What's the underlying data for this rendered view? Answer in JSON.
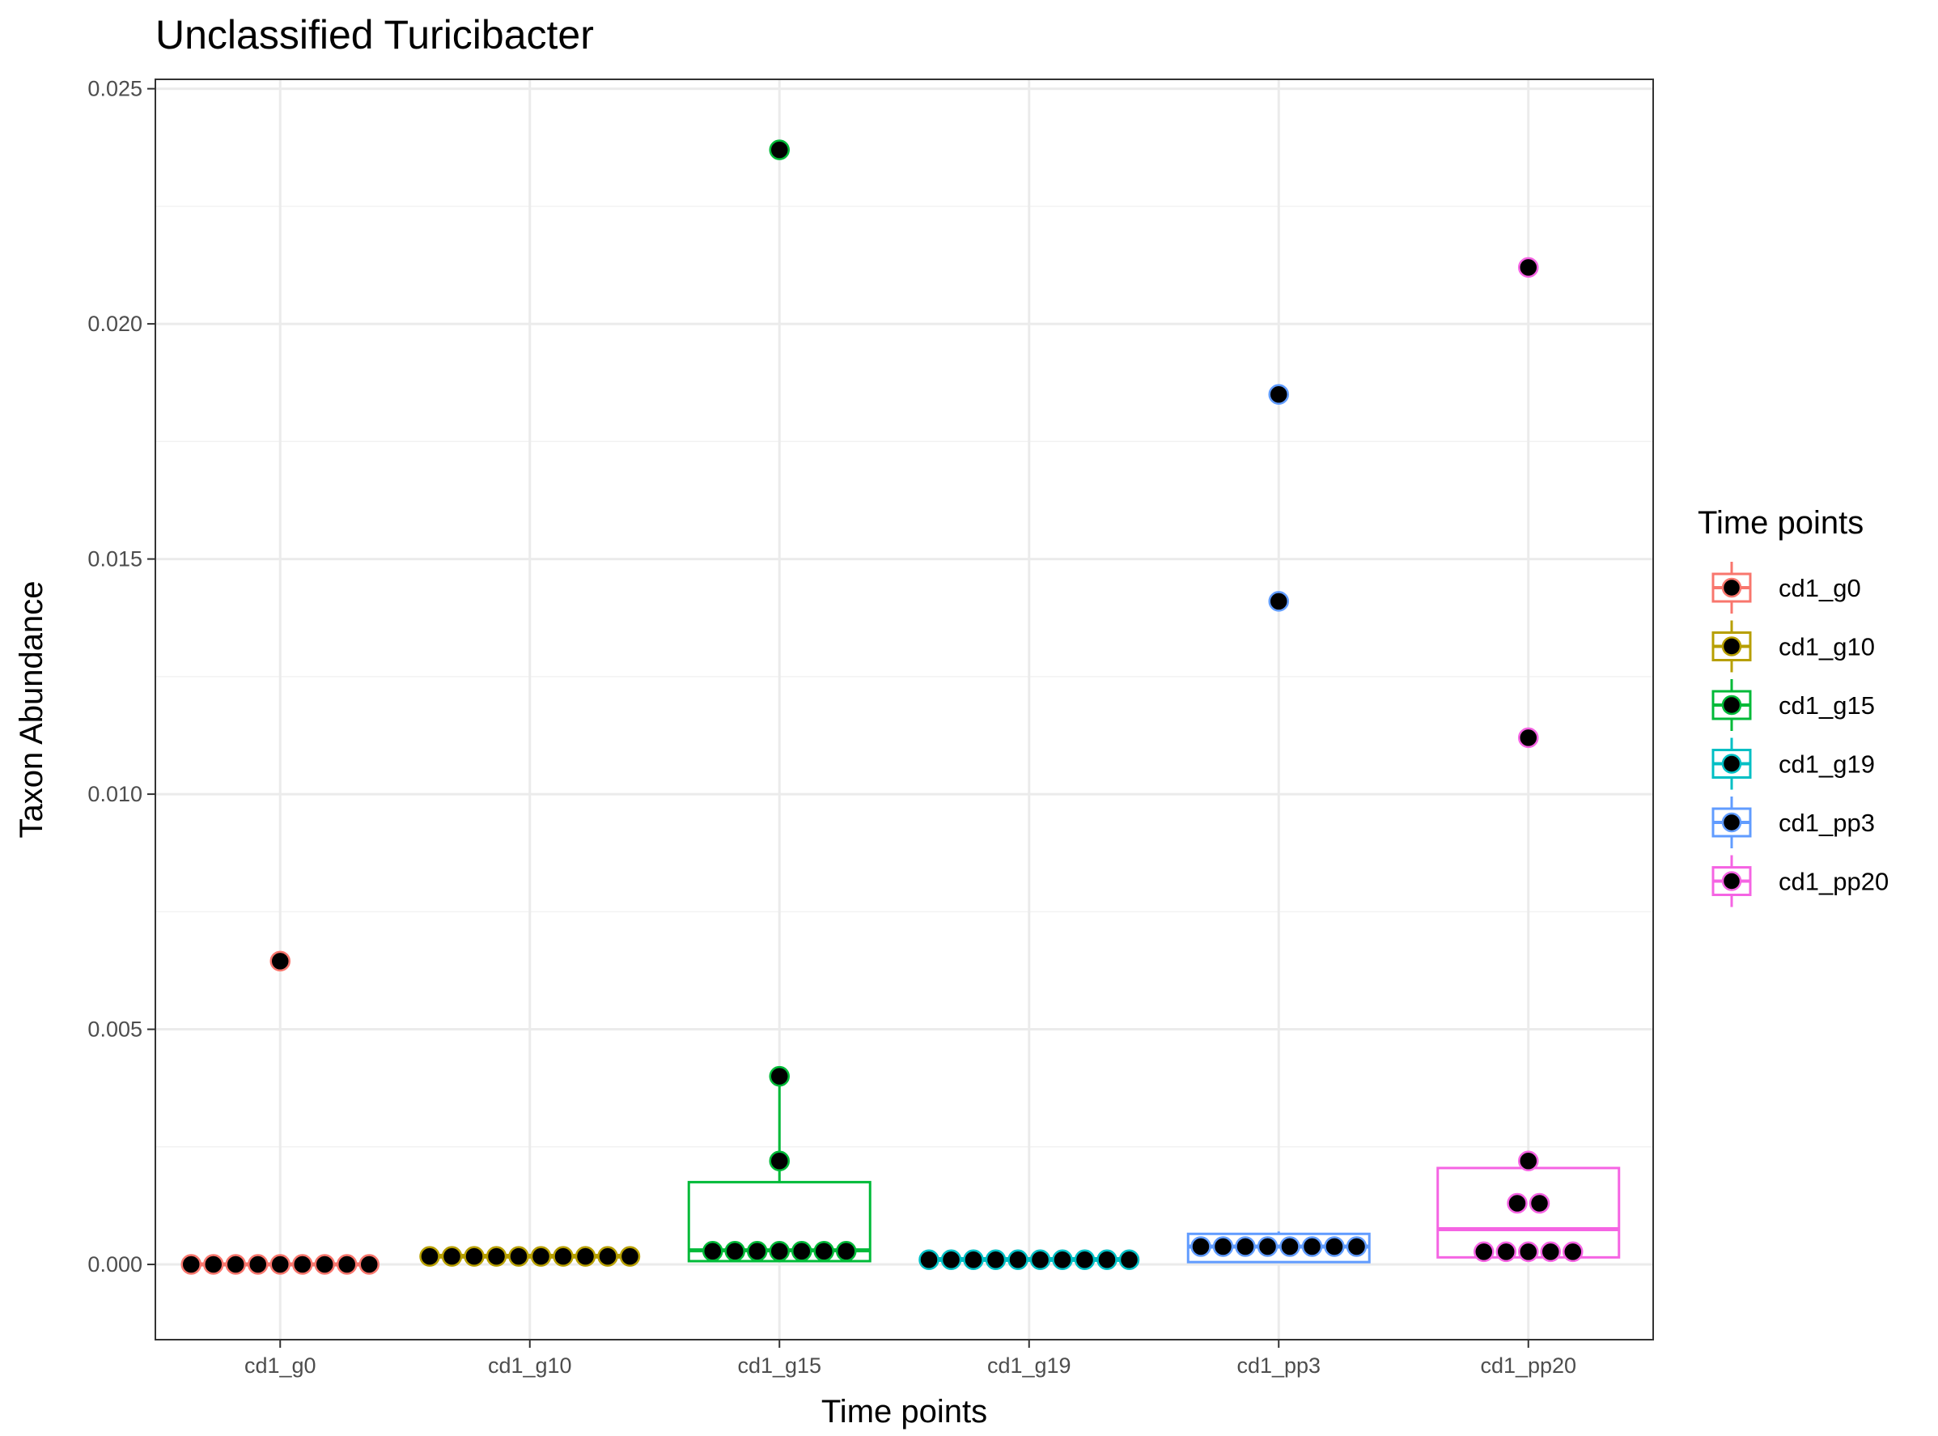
{
  "chart_data": {
    "type": "box",
    "title": "Unclassified  Turicibacter",
    "xlabel": "Time points",
    "ylabel": "Taxon Abundance",
    "ylim": [
      -0.0016,
      0.0252
    ],
    "yticks": [
      0.0,
      0.005,
      0.01,
      0.015,
      0.02,
      0.025
    ],
    "ytick_labels": [
      "0.000",
      "0.005",
      "0.010",
      "0.015",
      "0.020",
      "0.025"
    ],
    "grid": true,
    "legend": {
      "title": "Time points",
      "position": "right"
    },
    "categories": [
      "cd1_g0",
      "cd1_g10",
      "cd1_g15",
      "cd1_g19",
      "cd1_pp3",
      "cd1_pp20"
    ],
    "series": [
      {
        "name": "cd1_g0",
        "color": "#F8766D",
        "box": {
          "min": 0.0,
          "q1": 0.0,
          "median": 0.0,
          "q3": 0.0,
          "max": 0.0
        },
        "points": [
          0.0,
          0.0,
          0.0,
          0.0,
          0.0,
          0.0,
          0.0,
          0.0,
          0.0
        ],
        "outliers": [
          0.00645
        ]
      },
      {
        "name": "cd1_g10",
        "color": "#B79F00",
        "box": {
          "min": 0.00015,
          "q1": 0.00015,
          "median": 0.00017,
          "q3": 0.0002,
          "max": 0.0002
        },
        "points": [
          0.00017,
          0.00017,
          0.00017,
          0.00017,
          0.00017,
          0.00017,
          0.00017,
          0.00017,
          0.00017,
          0.00017
        ],
        "outliers": []
      },
      {
        "name": "cd1_g15",
        "color": "#00BA38",
        "box": {
          "min": 7e-05,
          "q1": 7e-05,
          "median": 0.0003,
          "q3": 0.00175,
          "max": 0.004
        },
        "points": [
          0.00028,
          0.00028,
          0.00028,
          0.00028,
          0.00028,
          0.00028,
          0.00028,
          0.0022
        ],
        "whisker_points": [
          0.004
        ],
        "outliers": [
          0.0237
        ]
      },
      {
        "name": "cd1_g19",
        "color": "#00BFC4",
        "box": {
          "min": 8e-05,
          "q1": 8e-05,
          "median": 0.0001,
          "q3": 0.00013,
          "max": 0.00013
        },
        "points": [
          0.0001,
          0.0001,
          0.0001,
          0.0001,
          0.0001,
          0.0001,
          0.0001,
          0.0001,
          0.0001,
          0.0001
        ],
        "outliers": []
      },
      {
        "name": "cd1_pp3",
        "color": "#619CFF",
        "box": {
          "min": 5e-05,
          "q1": 5e-05,
          "median": 0.00038,
          "q3": 0.00065,
          "max": 0.0007
        },
        "points": [
          0.00038,
          0.00038,
          0.00038,
          0.00038,
          0.00038,
          0.00038,
          0.00038,
          0.00038
        ],
        "outliers": [
          0.0141,
          0.0185
        ]
      },
      {
        "name": "cd1_pp20",
        "color": "#F564E3",
        "box": {
          "min": 0.00015,
          "q1": 0.00015,
          "median": 0.00075,
          "q3": 0.00205,
          "max": 0.0022
        },
        "points": [
          0.00027,
          0.00027,
          0.00027,
          0.00027,
          0.00027,
          0.0013,
          0.0013,
          0.0022
        ],
        "outliers": [
          0.0112,
          0.0212
        ]
      }
    ]
  }
}
